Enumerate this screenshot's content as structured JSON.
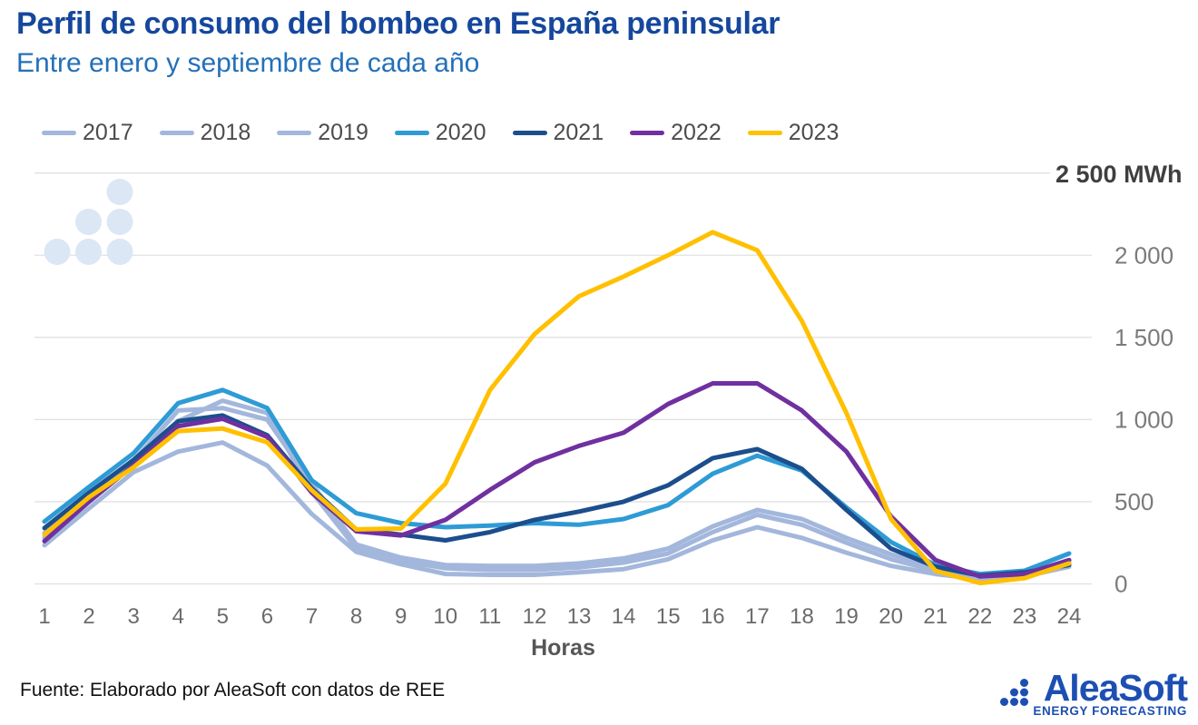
{
  "header": {
    "title": "Perfil de consumo del bombeo en España peninsular",
    "subtitle": "Entre enero y septiembre de cada año"
  },
  "chart_data": {
    "type": "line",
    "xlabel": "Horas",
    "x": [
      1,
      2,
      3,
      4,
      5,
      6,
      7,
      8,
      9,
      10,
      11,
      12,
      13,
      14,
      15,
      16,
      17,
      18,
      19,
      20,
      21,
      22,
      23,
      24
    ],
    "ylim": [
      0,
      2500
    ],
    "yticks": [
      0,
      500,
      1000,
      1500,
      2000
    ],
    "ytick_labels": [
      "0",
      "500",
      "1 000",
      "1 500",
      "2 000"
    ],
    "ymax_value": 2500,
    "ymax_label": "2 500 MWh",
    "unit": "MWh",
    "grid": "horizontal",
    "legend_position": "top-left",
    "series": [
      {
        "name": "2017",
        "color": "#a3b7dc",
        "values": [
          310,
          535,
          750,
          1055,
          1070,
          1000,
          610,
          240,
          160,
          115,
          110,
          110,
          125,
          155,
          215,
          350,
          450,
          395,
          280,
          180,
          100,
          45,
          62,
          140
        ]
      },
      {
        "name": "2018",
        "color": "#a3b7dc",
        "values": [
          280,
          505,
          730,
          990,
          1115,
          1040,
          560,
          215,
          140,
          95,
          85,
          85,
          100,
          130,
          185,
          315,
          420,
          360,
          250,
          150,
          80,
          35,
          52,
          120
        ]
      },
      {
        "name": "2019",
        "color": "#a3b7dc",
        "values": [
          235,
          460,
          680,
          805,
          860,
          720,
          425,
          195,
          120,
          60,
          55,
          55,
          70,
          90,
          150,
          265,
          345,
          280,
          190,
          110,
          60,
          28,
          45,
          105
        ]
      },
      {
        "name": "2020",
        "color": "#2e9bd5",
        "values": [
          380,
          590,
          795,
          1100,
          1180,
          1070,
          630,
          430,
          370,
          345,
          355,
          370,
          360,
          395,
          480,
          670,
          780,
          690,
          465,
          255,
          115,
          60,
          80,
          185
        ]
      },
      {
        "name": "2021",
        "color": "#1c4e8d",
        "values": [
          340,
          555,
          755,
          990,
          1025,
          905,
          582,
          330,
          300,
          265,
          315,
          390,
          440,
          500,
          600,
          765,
          820,
          700,
          450,
          215,
          105,
          50,
          70,
          115
        ]
      },
      {
        "name": "2022",
        "color": "#7030a0",
        "values": [
          260,
          500,
          722,
          960,
          1005,
          895,
          555,
          320,
          295,
          390,
          572,
          740,
          840,
          920,
          1095,
          1220,
          1220,
          1055,
          805,
          410,
          145,
          45,
          60,
          145
        ]
      },
      {
        "name": "2023",
        "color": "#ffc000",
        "values": [
          300,
          528,
          710,
          930,
          945,
          862,
          570,
          332,
          337,
          610,
          1180,
          1520,
          1750,
          1870,
          2000,
          2140,
          2030,
          1600,
          1040,
          395,
          80,
          5,
          35,
          125
        ]
      }
    ]
  },
  "watermark": {
    "icon": "aleasoft-dots-icon",
    "color": "#dce7f5"
  },
  "footer": {
    "source": "Fuente: Elaborado por AleaSoft con datos de REE",
    "logo": {
      "icon": "aleasoft-dots-icon",
      "text": "AleaSoft",
      "subtext": "ENERGY FORECASTING",
      "color": "#1d4fb3"
    }
  }
}
